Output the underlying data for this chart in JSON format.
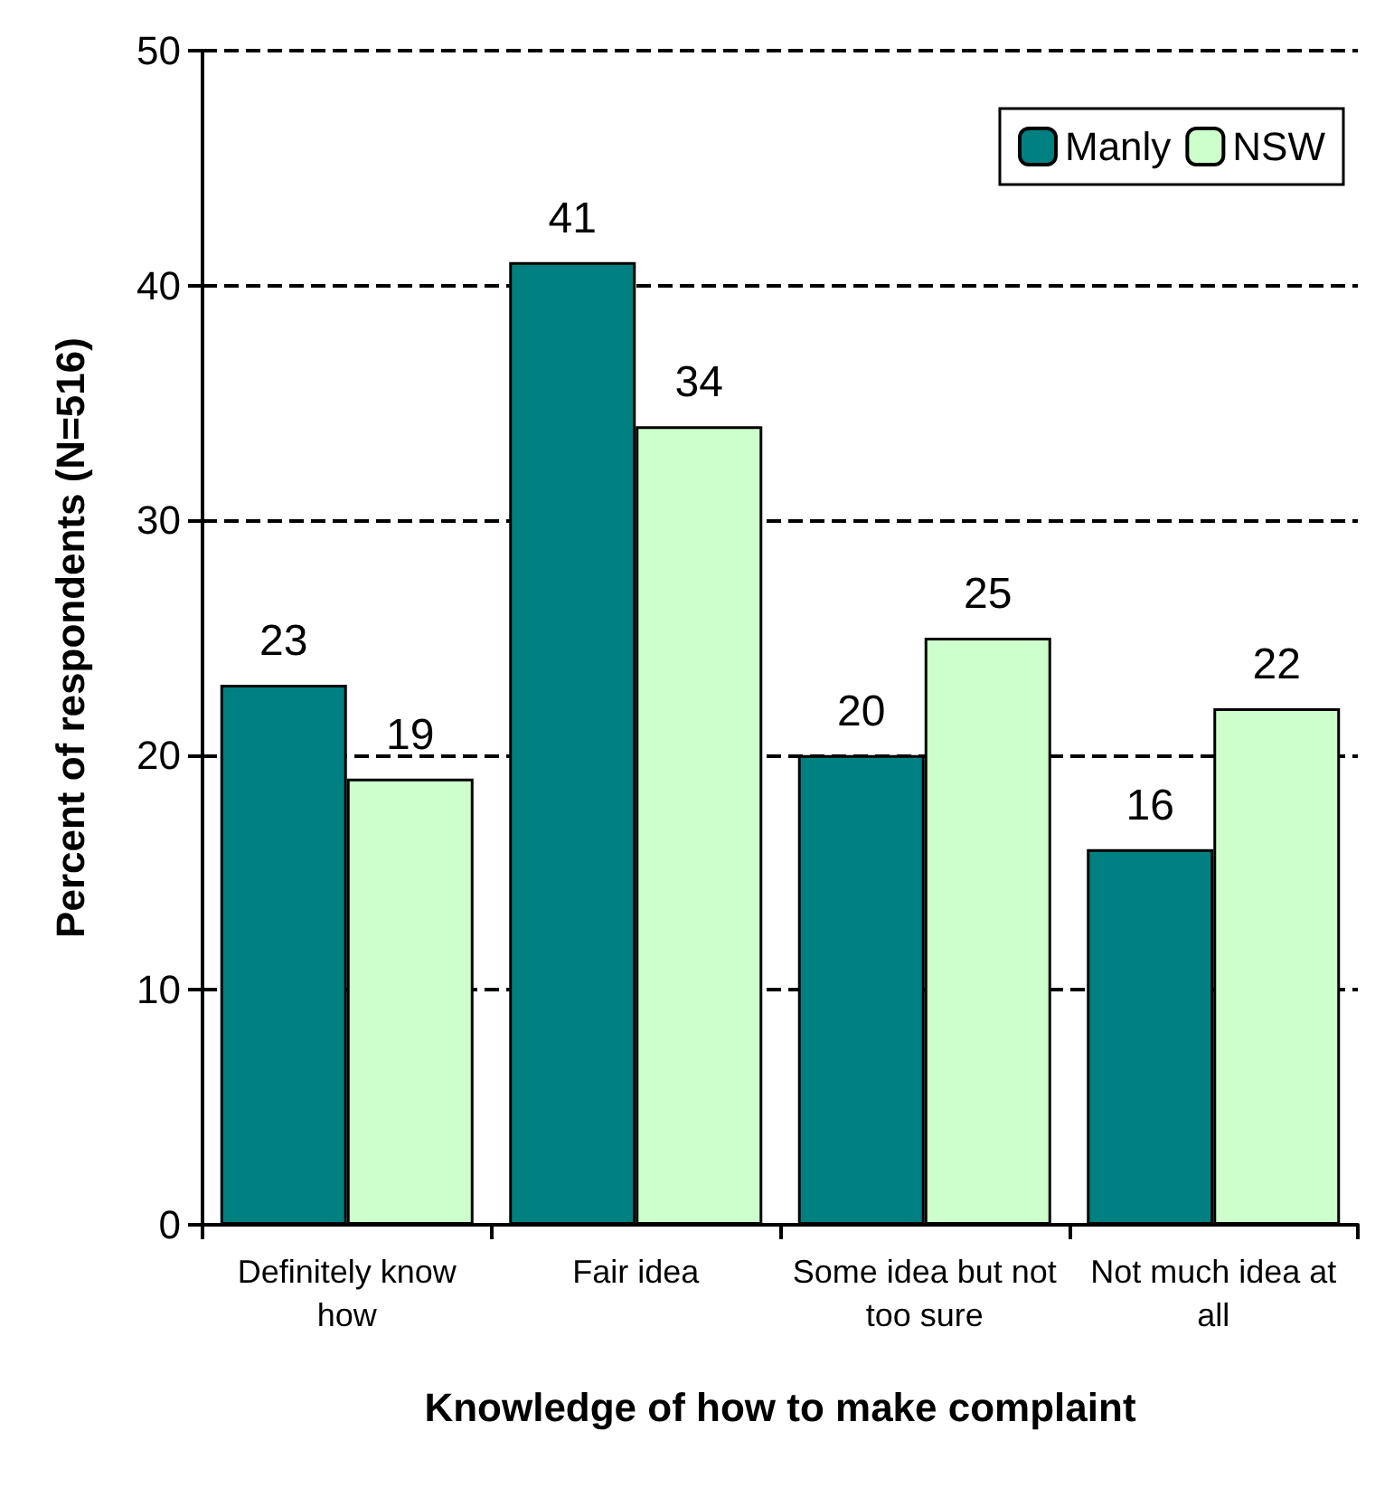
{
  "chart_data": {
    "type": "bar",
    "xlabel": "Knowledge of how to make complaint",
    "ylabel": "Percent of respondents (N=516)",
    "categories": [
      "Definitely know how",
      "Fair idea",
      "Some idea but not too sure",
      "Not much idea at all"
    ],
    "series": [
      {
        "name": "Manly",
        "color": "#008080",
        "values": [
          23,
          41,
          20,
          16
        ]
      },
      {
        "name": "NSW",
        "color": "#ccffcc",
        "values": [
          19,
          34,
          25,
          22
        ]
      }
    ],
    "ylim": [
      0,
      50
    ],
    "yticks": [
      0,
      10,
      20,
      30,
      40,
      50
    ],
    "grid": "y",
    "legend": "top right",
    "data_labels": true
  }
}
